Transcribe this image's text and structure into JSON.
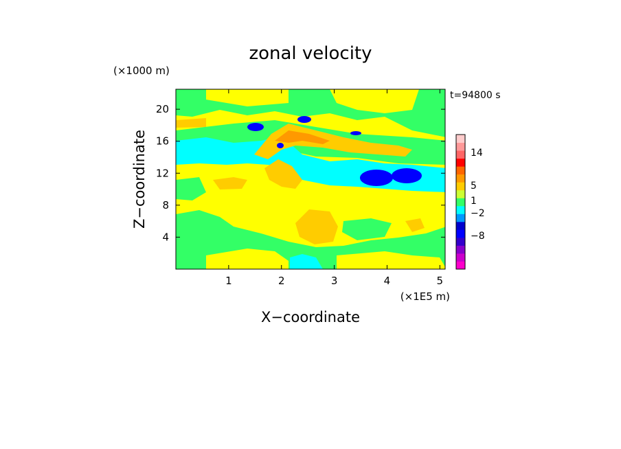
{
  "chart_data": {
    "type": "heatmap",
    "title": "zonal velocity",
    "xlabel": "X−coordinate",
    "ylabel": "Z−coordinate",
    "x_unit": "(×1E5 m)",
    "y_unit": "(×1000 m)",
    "time_label": "t=94800 s",
    "xlim": [
      0,
      5.1
    ],
    "ylim": [
      0,
      22.5
    ],
    "x_ticks": [
      "1",
      "2",
      "3",
      "4",
      "5"
    ],
    "x_tick_values": [
      1,
      2,
      3,
      4,
      5
    ],
    "y_ticks": [
      "4",
      "8",
      "12",
      "16",
      "20"
    ],
    "y_tick_values": [
      4,
      8,
      12,
      16,
      20
    ],
    "colorbar": {
      "levels_from_bottom": [
        {
          "color": "#ff00cc"
        },
        {
          "color": "#cc00cc"
        },
        {
          "color": "#8800cc"
        },
        {
          "color": "#3300cc"
        },
        {
          "color": "#0000ff"
        },
        {
          "color": "#0000cc"
        },
        {
          "color": "#0099ff"
        },
        {
          "color": "#00ffff"
        },
        {
          "color": "#33ff66"
        },
        {
          "color": "#ccff33"
        },
        {
          "color": "#ffcc00"
        },
        {
          "color": "#ff9900"
        },
        {
          "color": "#ff6600"
        },
        {
          "color": "#ff0000"
        },
        {
          "color": "#ff6666"
        },
        {
          "color": "#ff9999"
        },
        {
          "color": "#ffcccc"
        }
      ],
      "tick_labels": [
        "−8",
        "−2",
        "1",
        "5",
        "14"
      ]
    },
    "field": {
      "background": "#ffff00",
      "regions": [
        {
          "label": "green band lower",
          "color": "#33ff66"
        },
        {
          "label": "cyan jet",
          "color": "#00ffff"
        },
        {
          "label": "orange blobs",
          "color": "#ffcc00"
        },
        {
          "label": "blue cores",
          "color": "#0000ff"
        }
      ]
    }
  }
}
